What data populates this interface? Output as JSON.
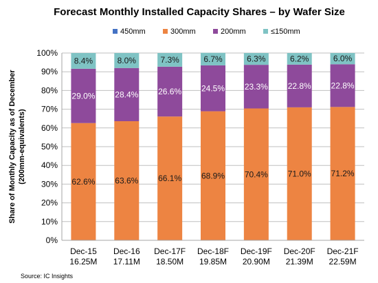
{
  "chart_data": {
    "type": "bar",
    "stacked": true,
    "title": "Forecast Monthly Installed Capacity Shares – by Wafer Size",
    "ylabel_line1": "Share of Monthly  Capacity as of December",
    "ylabel_line2": "(200mm-equivalents)",
    "xlabel": "",
    "ylim": [
      0,
      100
    ],
    "yticks": [
      "0%",
      "10%",
      "20%",
      "30%",
      "40%",
      "50%",
      "60%",
      "70%",
      "80%",
      "90%",
      "100%"
    ],
    "categories": [
      [
        "Dec-15",
        "16.25M"
      ],
      [
        "Dec-16",
        "17.11M"
      ],
      [
        "Dec-17F",
        "18.50M"
      ],
      [
        "Dec-18F",
        "19.85M"
      ],
      [
        "Dec-19F",
        "20.90M"
      ],
      [
        "Dec-20F",
        "21.39M"
      ],
      [
        "Dec-21F",
        "22.59M"
      ]
    ],
    "series": [
      {
        "name": "450mm",
        "color": "#4472c4",
        "values": [
          0,
          0,
          0,
          0,
          0,
          0,
          0
        ],
        "labels": [
          "",
          "",
          "",
          "",
          "",
          "",
          ""
        ],
        "label_color": "white"
      },
      {
        "name": "300mm",
        "color": "#ed8442",
        "values": [
          62.6,
          63.6,
          66.1,
          68.9,
          70.4,
          71.0,
          71.2
        ],
        "labels": [
          "62.6%",
          "63.6%",
          "66.1%",
          "68.9%",
          "70.4%",
          "71.0%",
          "71.2%"
        ],
        "label_color": "dark"
      },
      {
        "name": "200mm",
        "color": "#8e4a9b",
        "values": [
          29.0,
          28.4,
          26.6,
          24.5,
          23.3,
          22.8,
          22.8
        ],
        "labels": [
          "29.0%",
          "28.4%",
          "26.6%",
          "24.5%",
          "23.3%",
          "22.8%",
          "22.8%"
        ],
        "label_color": "white"
      },
      {
        "name": "≤150mm",
        "color": "#7fc3c4",
        "values": [
          8.4,
          8.0,
          7.3,
          6.7,
          6.3,
          6.2,
          6.0
        ],
        "labels": [
          "8.4%",
          "8.0%",
          "7.3%",
          "6.7%",
          "6.3%",
          "6.2%",
          "6.0%"
        ],
        "label_color": "dark"
      }
    ],
    "legend_position": "top",
    "grid": true,
    "source": "Source:  IC Insights"
  }
}
